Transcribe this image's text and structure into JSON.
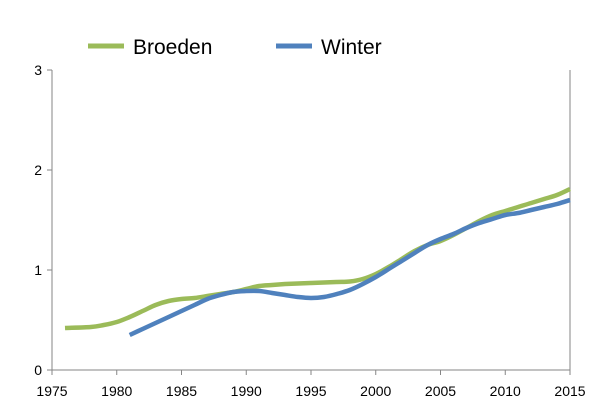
{
  "chart_data": {
    "type": "line",
    "title": "",
    "xlabel": "",
    "ylabel": "",
    "xlim": [
      1975,
      2015
    ],
    "ylim": [
      0,
      3
    ],
    "x_ticks": [
      "1975",
      "1980",
      "1985",
      "1990",
      "1995",
      "2000",
      "2005",
      "2010",
      "2015"
    ],
    "y_ticks": [
      "0",
      "1",
      "2",
      "3"
    ],
    "grid": false,
    "legend_position": "top",
    "series": [
      {
        "name": "Broeden",
        "color": "#9bbb59",
        "x": [
          1976,
          1978,
          1979,
          1980,
          1981,
          1982,
          1983,
          1984,
          1985,
          1986,
          1987,
          1988,
          1989,
          1990,
          1991,
          1992,
          1993,
          1994,
          1995,
          1996,
          1997,
          1998,
          1999,
          2000,
          2001,
          2002,
          2003,
          2004,
          2005,
          2006,
          2007,
          2008,
          2009,
          2010,
          2011,
          2012,
          2013,
          2014,
          2015
        ],
        "values": [
          0.42,
          0.43,
          0.45,
          0.48,
          0.53,
          0.59,
          0.65,
          0.69,
          0.71,
          0.72,
          0.74,
          0.76,
          0.78,
          0.81,
          0.84,
          0.85,
          0.86,
          0.865,
          0.87,
          0.875,
          0.88,
          0.885,
          0.91,
          0.96,
          1.03,
          1.11,
          1.19,
          1.25,
          1.29,
          1.35,
          1.42,
          1.49,
          1.55,
          1.59,
          1.63,
          1.67,
          1.71,
          1.75,
          1.81
        ]
      },
      {
        "name": "Winter",
        "color": "#4f81bd",
        "x": [
          1981,
          1982,
          1983,
          1984,
          1985,
          1986,
          1987,
          1988,
          1989,
          1990,
          1991,
          1992,
          1993,
          1994,
          1995,
          1996,
          1997,
          1998,
          1999,
          2000,
          2001,
          2002,
          2003,
          2004,
          2005,
          2006,
          2007,
          2008,
          2009,
          2010,
          2011,
          2012,
          2013,
          2014,
          2015
        ],
        "values": [
          0.35,
          0.41,
          0.47,
          0.53,
          0.59,
          0.65,
          0.71,
          0.75,
          0.78,
          0.79,
          0.79,
          0.77,
          0.75,
          0.73,
          0.72,
          0.73,
          0.76,
          0.8,
          0.86,
          0.93,
          1.01,
          1.09,
          1.17,
          1.25,
          1.31,
          1.36,
          1.42,
          1.47,
          1.51,
          1.55,
          1.57,
          1.6,
          1.63,
          1.66,
          1.7
        ]
      }
    ]
  }
}
